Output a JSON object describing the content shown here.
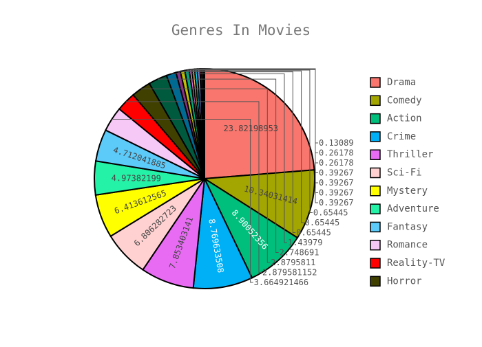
{
  "chart_data": {
    "type": "pie",
    "title": "Genres In Movies",
    "legend_position": "right",
    "slices": [
      {
        "label": "Drama",
        "value": 23.82198953,
        "value_text": "23.82198953",
        "color": "#f8766d"
      },
      {
        "label": "Comedy",
        "value": 10.34031414,
        "value_text": "10.34031414",
        "color": "#a3a500"
      },
      {
        "label": "Action",
        "value": 8.90052356,
        "value_text": "8.90052356",
        "color": "#00bf7d"
      },
      {
        "label": "Crime",
        "value": 8.769633508,
        "value_text": "8.769633508",
        "color": "#00b0f6"
      },
      {
        "label": "Thriller",
        "value": 7.853403141,
        "value_text": "7.853403141",
        "color": "#e76bf3"
      },
      {
        "label": "Sci-Fi",
        "value": 6.806282723,
        "value_text": "6.806282723",
        "color": "#ffd1d1"
      },
      {
        "label": "Mystery",
        "value": 6.413612565,
        "value_text": "6.413612565",
        "color": "#ffff00"
      },
      {
        "label": "Adventure",
        "value": 4.97382199,
        "value_text": "4.97382199",
        "color": "#24f2a6"
      },
      {
        "label": "Fantasy",
        "value": 4.712041885,
        "value_text": "4.712041885",
        "color": "#5ccbfa"
      },
      {
        "label": "Romance",
        "value": 3.664921466,
        "value_text": "3.664921466",
        "color": "#f6c8f6"
      },
      {
        "label": "Reality-TV",
        "value": 2.879581152,
        "value_text": "2.879581152",
        "color": "#ff0000"
      },
      {
        "label": "Horror",
        "value": 2.8795811,
        "value_text": "2.8795811",
        "color": "#404000"
      },
      {
        "label": "",
        "value": 2.748691,
        "value_text": "2.748691",
        "color": "#005a3e"
      },
      {
        "label": "",
        "value": 1.43979,
        "value_text": "1.43979",
        "color": "#006a93"
      },
      {
        "label": "",
        "value": 0.65445,
        "value_text": "0.65445",
        "color": "#8b2f8b"
      },
      {
        "label": "",
        "value": 0.65445,
        "value_text": "0.65445",
        "color": "#c0c000"
      },
      {
        "label": "",
        "value": 0.65445,
        "value_text": "0.65445",
        "color": "#00a77a"
      },
      {
        "label": "",
        "value": 0.39267,
        "value_text": "0.39267",
        "color": "#e46be4"
      },
      {
        "label": "",
        "value": 0.39267,
        "value_text": "0.39267",
        "color": "#e0b050"
      },
      {
        "label": "",
        "value": 0.39267,
        "value_text": "0.39267",
        "color": "#00d9f6"
      },
      {
        "label": "",
        "value": 0.39267,
        "value_text": "0.39267",
        "color": "#9999ff"
      },
      {
        "label": "",
        "value": 0.26178,
        "value_text": "0.26178",
        "color": "#c00000"
      },
      {
        "label": "",
        "value": 0.26178,
        "value_text": "0.26178",
        "color": "#303030"
      },
      {
        "label": "",
        "value": 0.13089,
        "value_text": "0.13089",
        "color": "#8b0000"
      }
    ]
  }
}
